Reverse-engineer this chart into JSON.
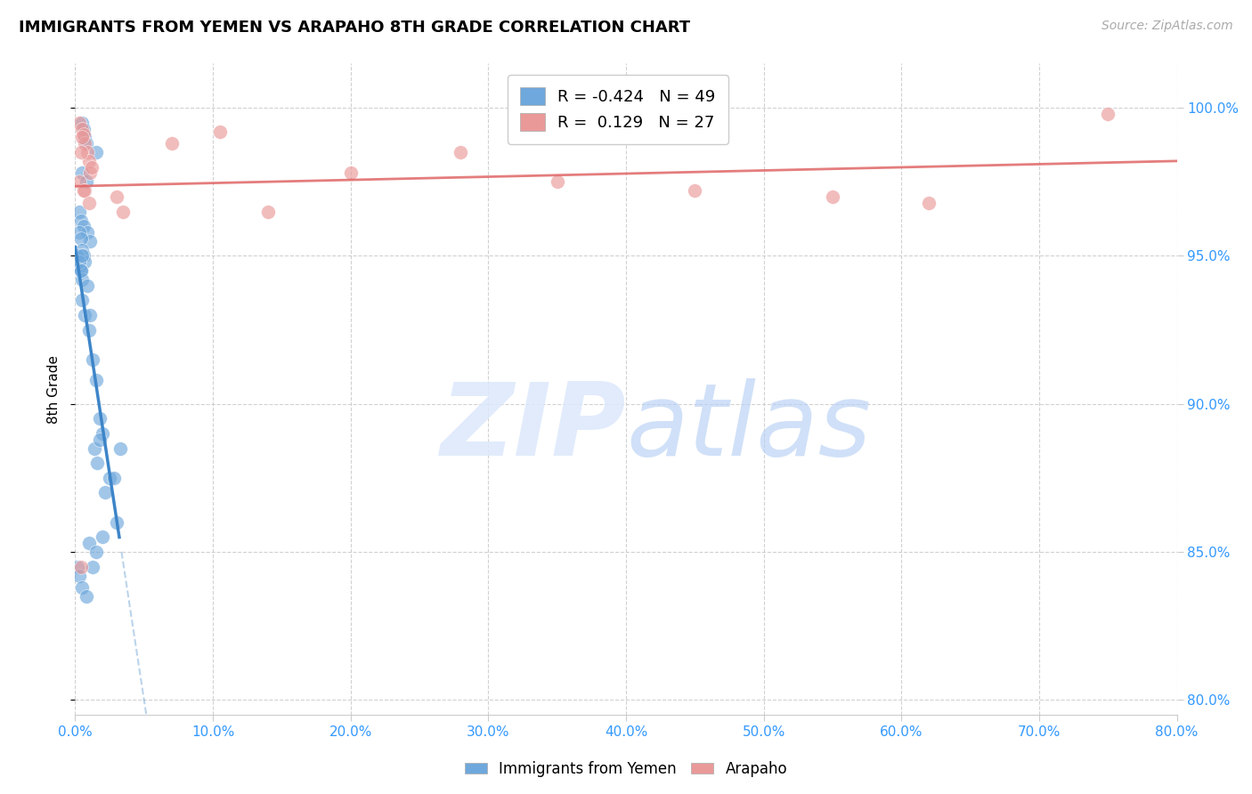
{
  "title": "IMMIGRANTS FROM YEMEN VS ARAPAHO 8TH GRADE CORRELATION CHART",
  "source": "Source: ZipAtlas.com",
  "ylabel": "8th Grade",
  "xlim": [
    0.0,
    80.0
  ],
  "ylim": [
    79.5,
    101.5
  ],
  "xticks": [
    0.0,
    10.0,
    20.0,
    30.0,
    40.0,
    50.0,
    60.0,
    70.0,
    80.0
  ],
  "yticks": [
    80.0,
    85.0,
    90.0,
    95.0,
    100.0
  ],
  "blue_R": -0.424,
  "blue_N": 49,
  "pink_R": 0.129,
  "pink_N": 27,
  "blue_label": "Immigrants from Yemen",
  "pink_label": "Arapaho",
  "blue_color": "#6fa8dc",
  "pink_color": "#ea9999",
  "blue_line_color": "#3d85c8",
  "pink_line_color": "#e06666",
  "blue_x": [
    0.5,
    0.6,
    0.7,
    0.8,
    1.5,
    0.5,
    0.8,
    0.3,
    0.4,
    0.6,
    0.9,
    1.1,
    0.3,
    0.4,
    0.5,
    0.6,
    0.7,
    0.3,
    0.4,
    0.5,
    0.2,
    0.3,
    0.4,
    0.5,
    0.7,
    1.0,
    1.3,
    1.5,
    1.8,
    2.0,
    0.5,
    0.9,
    1.1,
    1.4,
    1.6,
    2.5,
    2.2,
    2.8,
    3.0,
    3.3,
    0.2,
    0.3,
    0.5,
    1.0,
    1.5,
    2.0,
    1.8,
    1.3,
    0.8
  ],
  "blue_y": [
    99.5,
    99.3,
    99.0,
    98.8,
    98.5,
    97.8,
    97.5,
    96.5,
    96.2,
    96.0,
    95.8,
    95.5,
    95.8,
    95.6,
    95.2,
    95.0,
    94.8,
    94.6,
    94.5,
    94.2,
    95.0,
    94.8,
    94.5,
    93.5,
    93.0,
    92.5,
    91.5,
    90.8,
    89.5,
    89.0,
    95.0,
    94.0,
    93.0,
    88.5,
    88.0,
    87.5,
    87.0,
    87.5,
    86.0,
    88.5,
    84.5,
    84.2,
    83.8,
    85.3,
    85.0,
    85.5,
    88.8,
    84.5,
    83.5
  ],
  "pink_x": [
    0.3,
    0.5,
    0.6,
    0.7,
    0.9,
    1.0,
    1.1,
    1.2,
    0.4,
    0.5,
    0.3,
    0.7,
    1.0,
    3.0,
    3.5,
    10.5,
    7.0,
    20.0,
    35.0,
    45.0,
    55.0,
    62.0,
    75.0,
    28.0,
    14.0,
    0.4,
    0.6
  ],
  "pink_y": [
    99.5,
    99.3,
    99.1,
    98.8,
    98.5,
    98.2,
    97.8,
    98.0,
    98.5,
    99.0,
    97.5,
    97.2,
    96.8,
    97.0,
    96.5,
    99.2,
    98.8,
    97.8,
    97.5,
    97.2,
    97.0,
    96.8,
    99.8,
    98.5,
    96.5,
    84.5,
    97.2
  ]
}
